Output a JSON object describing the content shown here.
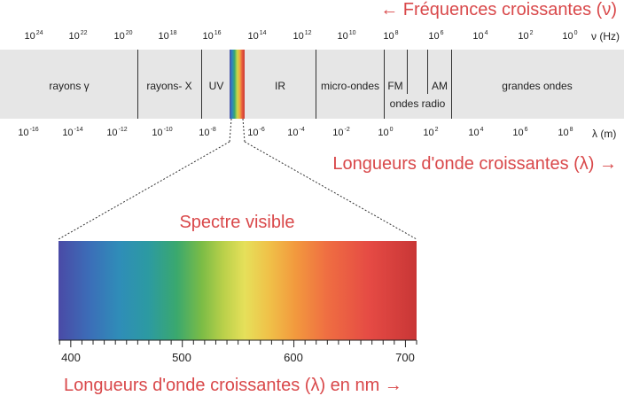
{
  "frequency_title": "← Fréquences croissantes (ν)",
  "frequency_unit": "ν (Hz)",
  "frequency_ticks": [
    {
      "base": "10",
      "exp": "24"
    },
    {
      "base": "10",
      "exp": "22"
    },
    {
      "base": "10",
      "exp": "20"
    },
    {
      "base": "10",
      "exp": "18"
    },
    {
      "base": "10",
      "exp": "16"
    },
    {
      "base": "10",
      "exp": "14"
    },
    {
      "base": "10",
      "exp": "12"
    },
    {
      "base": "10",
      "exp": "10"
    },
    {
      "base": "10",
      "exp": "8"
    },
    {
      "base": "10",
      "exp": "6"
    },
    {
      "base": "10",
      "exp": "4"
    },
    {
      "base": "10",
      "exp": "2"
    },
    {
      "base": "10",
      "exp": "0"
    }
  ],
  "wavelength_title": "Longueurs d'onde croissantes (λ) →",
  "wavelength_unit": "λ (m)",
  "wavelength_ticks": [
    {
      "base": "10",
      "exp": "-16"
    },
    {
      "base": "10",
      "exp": "-14"
    },
    {
      "base": "10",
      "exp": "-12"
    },
    {
      "base": "10",
      "exp": "-10"
    },
    {
      "base": "10",
      "exp": "-8"
    },
    {
      "base": "10",
      "exp": "-6"
    },
    {
      "base": "10",
      "exp": "-4"
    },
    {
      "base": "10",
      "exp": "-2"
    },
    {
      "base": "10",
      "exp": "0"
    },
    {
      "base": "10",
      "exp": "2"
    },
    {
      "base": "10",
      "exp": "4"
    },
    {
      "base": "10",
      "exp": "6"
    },
    {
      "base": "10",
      "exp": "8"
    }
  ],
  "regions": [
    "rayons γ",
    "rayons- X",
    "UV",
    "IR",
    "micro-ondes",
    "FM",
    "ondes radio",
    "AM",
    "grandes ondes"
  ],
  "visible_title": "Spectre visible",
  "visible_ticks": [
    "400",
    "500",
    "600",
    "700"
  ],
  "visible_axis_title": "Longueurs d'onde croissantes (λ) en nm →",
  "colors": {
    "accent": "#d9484a",
    "band": "#e6e6e6"
  }
}
